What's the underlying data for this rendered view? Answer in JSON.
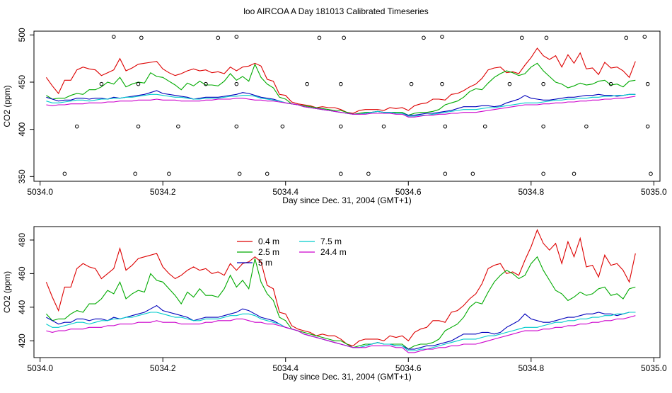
{
  "page_title": "loo AIRCOA A  Day 181013  Calibrated Timeseries",
  "colors": {
    "0.4 m": "#dd0000",
    "2.5 m": "#00aa00",
    "5 m": "#0000bb",
    "7.5 m": "#00cccc",
    "24.4 m": "#cc00cc"
  },
  "chart_data": [
    {
      "type": "scatter",
      "title": "loo AIRCOA A  Day 181013  Calibrated Timeseries",
      "xlabel": "Day since Dec. 31, 2004 (GMT+1)",
      "ylabel": "CO2 (ppm)",
      "xlim": [
        5033.99,
        5035.01
      ],
      "ylim": [
        345,
        504
      ],
      "x_ticks": [
        5034.0,
        5034.2,
        5034.4,
        5034.6,
        5034.8,
        5035.0
      ],
      "x_tick_labels": [
        "5034.0",
        "5034.2",
        "5034.4",
        "5034.6",
        "5034.8",
        "5035.0"
      ],
      "y_ticks": [
        350,
        400,
        450,
        500
      ],
      "y_tick_labels": [
        "350",
        "400",
        "450",
        "500"
      ],
      "grid": false,
      "points": [
        {
          "x": 5034.04,
          "y": 353
        },
        {
          "x": 5034.06,
          "y": 403
        },
        {
          "x": 5034.1,
          "y": 448
        },
        {
          "x": 5034.12,
          "y": 498
        },
        {
          "x": 5034.155,
          "y": 353
        },
        {
          "x": 5034.16,
          "y": 403
        },
        {
          "x": 5034.16,
          "y": 448
        },
        {
          "x": 5034.165,
          "y": 497
        },
        {
          "x": 5034.21,
          "y": 353
        },
        {
          "x": 5034.225,
          "y": 403
        },
        {
          "x": 5034.27,
          "y": 448
        },
        {
          "x": 5034.29,
          "y": 497
        },
        {
          "x": 5034.32,
          "y": 498
        },
        {
          "x": 5034.32,
          "y": 448
        },
        {
          "x": 5034.32,
          "y": 403
        },
        {
          "x": 5034.325,
          "y": 353
        },
        {
          "x": 5034.37,
          "y": 353
        },
        {
          "x": 5034.395,
          "y": 403
        },
        {
          "x": 5034.435,
          "y": 448
        },
        {
          "x": 5034.455,
          "y": 497
        },
        {
          "x": 5034.49,
          "y": 448
        },
        {
          "x": 5034.49,
          "y": 403
        },
        {
          "x": 5034.49,
          "y": 353
        },
        {
          "x": 5034.495,
          "y": 497
        },
        {
          "x": 5034.535,
          "y": 353
        },
        {
          "x": 5034.56,
          "y": 403
        },
        {
          "x": 5034.605,
          "y": 448
        },
        {
          "x": 5034.625,
          "y": 497
        },
        {
          "x": 5034.655,
          "y": 498
        },
        {
          "x": 5034.655,
          "y": 448
        },
        {
          "x": 5034.66,
          "y": 403
        },
        {
          "x": 5034.66,
          "y": 353
        },
        {
          "x": 5034.705,
          "y": 353
        },
        {
          "x": 5034.725,
          "y": 403
        },
        {
          "x": 5034.765,
          "y": 448
        },
        {
          "x": 5034.785,
          "y": 497
        },
        {
          "x": 5034.82,
          "y": 448
        },
        {
          "x": 5034.82,
          "y": 403
        },
        {
          "x": 5034.825,
          "y": 497
        },
        {
          "x": 5034.82,
          "y": 353
        },
        {
          "x": 5034.87,
          "y": 353
        },
        {
          "x": 5034.89,
          "y": 403
        },
        {
          "x": 5034.93,
          "y": 448
        },
        {
          "x": 5034.955,
          "y": 497
        },
        {
          "x": 5034.985,
          "y": 498
        },
        {
          "x": 5034.99,
          "y": 448
        },
        {
          "x": 5034.99,
          "y": 403
        },
        {
          "x": 5034.995,
          "y": 353
        }
      ],
      "series": [
        {
          "name": "0.4 m",
          "x_start": 5034.01,
          "x_step": 0.01,
          "values": [
            455,
            446,
            438,
            452,
            452,
            463,
            466,
            464,
            463,
            457,
            460,
            463,
            475,
            462,
            465,
            469,
            470,
            471,
            472,
            464,
            460,
            457,
            459,
            462,
            464,
            462,
            463,
            460,
            461,
            459,
            466,
            462,
            466,
            467,
            470,
            467,
            453,
            451,
            437,
            436,
            429,
            427,
            426,
            425,
            423,
            424,
            423,
            423,
            421,
            418,
            417,
            420,
            421,
            421,
            421,
            420,
            423,
            422,
            423,
            420,
            425,
            427,
            428,
            432,
            432,
            431,
            437,
            438,
            441,
            445,
            448,
            454,
            463,
            465,
            466,
            460,
            461,
            459,
            468,
            476,
            486,
            478,
            474,
            478,
            466,
            479,
            470,
            481,
            464,
            465,
            458,
            471,
            465,
            466,
            462,
            455,
            472
          ]
        },
        {
          "name": "2.5 m",
          "x_start": 5034.01,
          "x_step": 0.01,
          "values": [
            436,
            432,
            433,
            433,
            436,
            438,
            437,
            442,
            442,
            445,
            450,
            448,
            455,
            445,
            448,
            450,
            449,
            460,
            456,
            455,
            451,
            447,
            442,
            449,
            446,
            451,
            447,
            447,
            446,
            451,
            459,
            452,
            456,
            451,
            469,
            455,
            448,
            444,
            434,
            432,
            427,
            426,
            425,
            424,
            423,
            422,
            421,
            420,
            420,
            418,
            416,
            417,
            418,
            418,
            419,
            418,
            418,
            418,
            418,
            415,
            417,
            418,
            418,
            419,
            421,
            426,
            428,
            430,
            434,
            440,
            443,
            442,
            449,
            455,
            459,
            462,
            460,
            457,
            459,
            466,
            470,
            462,
            456,
            450,
            448,
            444,
            446,
            449,
            447,
            448,
            451,
            452,
            447,
            448,
            445,
            451,
            452
          ]
        },
        {
          "name": "5 m",
          "x_start": 5034.01,
          "x_step": 0.01,
          "values": [
            434,
            432,
            430,
            431,
            431,
            433,
            433,
            432,
            433,
            433,
            432,
            434,
            433,
            434,
            435,
            436,
            437,
            439,
            441,
            438,
            437,
            436,
            435,
            434,
            432,
            433,
            434,
            434,
            434,
            435,
            436,
            437,
            439,
            438,
            436,
            434,
            433,
            432,
            430,
            428,
            427,
            426,
            424,
            423,
            422,
            421,
            420,
            419,
            418,
            417,
            416,
            416,
            417,
            418,
            419,
            418,
            418,
            417,
            417,
            415,
            415,
            416,
            417,
            417,
            418,
            419,
            420,
            422,
            424,
            424,
            424,
            425,
            425,
            424,
            425,
            428,
            430,
            432,
            436,
            433,
            432,
            431,
            431,
            432,
            433,
            434,
            434,
            435,
            436,
            436,
            437,
            436,
            436,
            435,
            436,
            437,
            437
          ]
        },
        {
          "name": "7.5 m",
          "x_start": 5034.01,
          "x_step": 0.01,
          "values": [
            430,
            428,
            428,
            429,
            430,
            431,
            431,
            430,
            431,
            432,
            432,
            433,
            433,
            434,
            434,
            435,
            436,
            437,
            437,
            436,
            435,
            434,
            434,
            433,
            432,
            432,
            433,
            433,
            433,
            434,
            435,
            435,
            436,
            436,
            435,
            433,
            432,
            431,
            430,
            428,
            427,
            426,
            424,
            423,
            422,
            421,
            420,
            419,
            418,
            417,
            416,
            416,
            417,
            418,
            419,
            418,
            418,
            417,
            417,
            414,
            414,
            415,
            415,
            416,
            417,
            418,
            419,
            420,
            421,
            421,
            421,
            422,
            423,
            423,
            424,
            425,
            426,
            427,
            428,
            428,
            428,
            429,
            430,
            431,
            431,
            432,
            432,
            433,
            433,
            434,
            434,
            435,
            435,
            436,
            436,
            437,
            437
          ]
        },
        {
          "name": "24.4 m",
          "x_start": 5034.01,
          "x_step": 0.01,
          "values": [
            426,
            425,
            426,
            426,
            427,
            427,
            427,
            428,
            428,
            428,
            429,
            429,
            430,
            430,
            430,
            431,
            431,
            431,
            432,
            431,
            431,
            431,
            430,
            430,
            430,
            430,
            431,
            431,
            432,
            432,
            432,
            433,
            433,
            432,
            431,
            431,
            430,
            430,
            429,
            428,
            427,
            426,
            424,
            423,
            422,
            421,
            420,
            419,
            418,
            417,
            416,
            416,
            416,
            417,
            417,
            417,
            417,
            416,
            416,
            413,
            413,
            414,
            415,
            415,
            416,
            416,
            417,
            417,
            418,
            418,
            418,
            419,
            420,
            421,
            422,
            423,
            424,
            425,
            426,
            426,
            426,
            427,
            427,
            428,
            428,
            429,
            429,
            430,
            430,
            431,
            431,
            432,
            432,
            433,
            433,
            434,
            435
          ]
        }
      ]
    },
    {
      "type": "line",
      "title": "",
      "xlabel": "Day since Dec. 31, 2004 (GMT+1)",
      "ylabel": "CO2 (ppm)",
      "xlim": [
        5033.99,
        5035.01
      ],
      "ylim": [
        410,
        488
      ],
      "x_ticks": [
        5034.0,
        5034.2,
        5034.4,
        5034.6,
        5034.8,
        5035.0
      ],
      "x_tick_labels": [
        "5034.0",
        "5034.2",
        "5034.4",
        "5034.6",
        "5034.8",
        "5035.0"
      ],
      "y_ticks": [
        420,
        440,
        460,
        480
      ],
      "y_tick_labels": [
        "420",
        "440",
        "460",
        "480"
      ],
      "grid": false,
      "legend_position": "top-left",
      "legend": [
        "0.4 m",
        "2.5 m",
        "5 m",
        "7.5 m",
        "24.4 m"
      ],
      "series_ref": "same as panel 1"
    }
  ]
}
